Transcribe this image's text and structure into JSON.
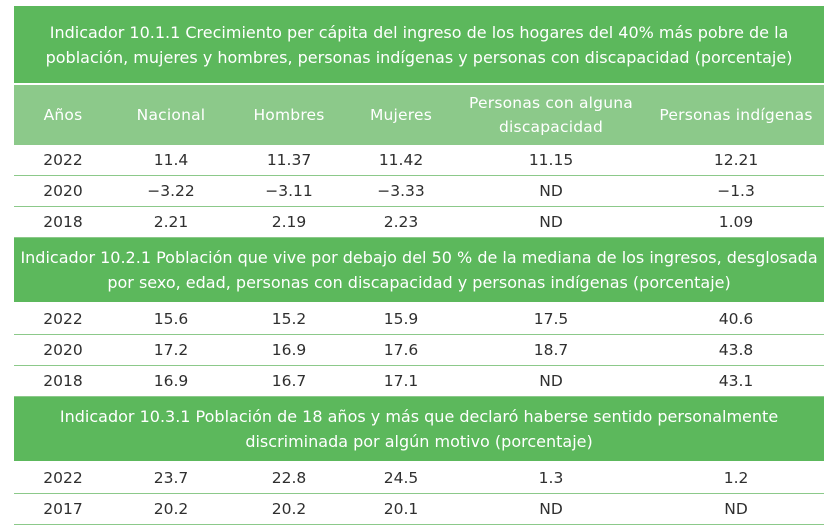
{
  "columns": [
    "Años",
    "Nacional",
    "Hombres",
    "Mujeres",
    "Personas con alguna discapacidad",
    "Personas indígenas"
  ],
  "sections": [
    {
      "title": "Indicador 10.1.1 Crecimiento per cápita del ingreso de los hogares del 40% más pobre de la población, mujeres y hombres, personas indígenas y personas con discapacidad (porcentaje)",
      "rows": [
        [
          "2022",
          "11.4",
          "11.37",
          "11.42",
          "11.15",
          "12.21"
        ],
        [
          "2020",
          "−3.22",
          "−3.11",
          "−3.33",
          "ND",
          "−1.3"
        ],
        [
          "2018",
          "2.21",
          "2.19",
          "2.23",
          "ND",
          "1.09"
        ]
      ]
    },
    {
      "title": "Indicador 10.2.1 Población que vive por debajo del 50 % de la mediana de los ingresos, desglosada por sexo, edad, personas con discapacidad y personas indígenas (porcentaje)",
      "rows": [
        [
          "2022",
          "15.6",
          "15.2",
          "15.9",
          "17.5",
          "40.6"
        ],
        [
          "2020",
          "17.2",
          "16.9",
          "17.6",
          "18.7",
          "43.8"
        ],
        [
          "2018",
          "16.9",
          "16.7",
          "17.1",
          "ND",
          "43.1"
        ]
      ]
    },
    {
      "title": "Indicador 10.3.1 Población de 18 años y más que declaró haberse sentido personalmente discriminada por algún motivo (porcentaje)",
      "rows": [
        [
          "2022",
          "23.7",
          "22.8",
          "24.5",
          "1.3",
          "1.2"
        ],
        [
          "2017",
          "20.2",
          "20.2",
          "20.1",
          "ND",
          "ND"
        ]
      ]
    }
  ]
}
